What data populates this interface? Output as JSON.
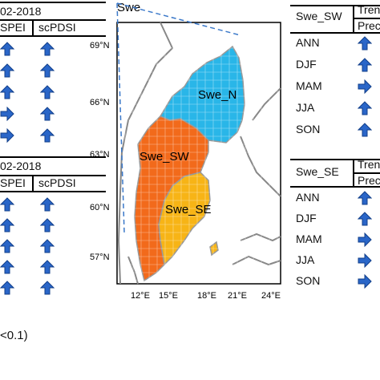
{
  "left_top": {
    "period": "02-2018",
    "col1": "SPEI",
    "col2": "scPDSI",
    "rows": [
      [
        "up",
        "up"
      ],
      [
        "up",
        "up"
      ],
      [
        "up",
        "up"
      ],
      [
        "right",
        "up"
      ],
      [
        "right",
        "up"
      ]
    ]
  },
  "left_bottom": {
    "period": "02-2018",
    "col1": "SPEI",
    "col2": "scPDSI",
    "rows": [
      [
        "up",
        "up"
      ],
      [
        "up",
        "up"
      ],
      [
        "up",
        "up"
      ],
      [
        "up",
        "up"
      ],
      [
        "up",
        "up"
      ]
    ]
  },
  "footnote": "<0.1)",
  "map": {
    "domain_label": "Swe",
    "regions": [
      {
        "name": "Swe_N",
        "color": "#29b6e8"
      },
      {
        "name": "Swe_SW",
        "color": "#f26a1b"
      },
      {
        "name": "Swe_SE",
        "color": "#f7b416"
      }
    ],
    "lat_labels": [
      "69°N",
      "66°N",
      "63°N",
      "60°N",
      "57°N"
    ],
    "lon_labels": [
      "12°E",
      "15°E",
      "18°E",
      "21°E",
      "24°E"
    ]
  },
  "right_top": {
    "region": "Swe_SW",
    "h1": "Tren",
    "h2": "Prec",
    "rows": [
      {
        "season": "ANN",
        "arrow": "up"
      },
      {
        "season": "DJF",
        "arrow": "up"
      },
      {
        "season": "MAM",
        "arrow": "right"
      },
      {
        "season": "JJA",
        "arrow": "up"
      },
      {
        "season": "SON",
        "arrow": "up"
      }
    ]
  },
  "right_bottom": {
    "region": "Swe_SE",
    "h1": "Tren",
    "h2": "Prec",
    "rows": [
      {
        "season": "ANN",
        "arrow": "up"
      },
      {
        "season": "DJF",
        "arrow": "up"
      },
      {
        "season": "MAM",
        "arrow": "right"
      },
      {
        "season": "JJA",
        "arrow": "right"
      },
      {
        "season": "SON",
        "arrow": "right"
      }
    ]
  },
  "colors": {
    "arrow": "#2a66c8",
    "arrow_edge": "#123f8a"
  }
}
